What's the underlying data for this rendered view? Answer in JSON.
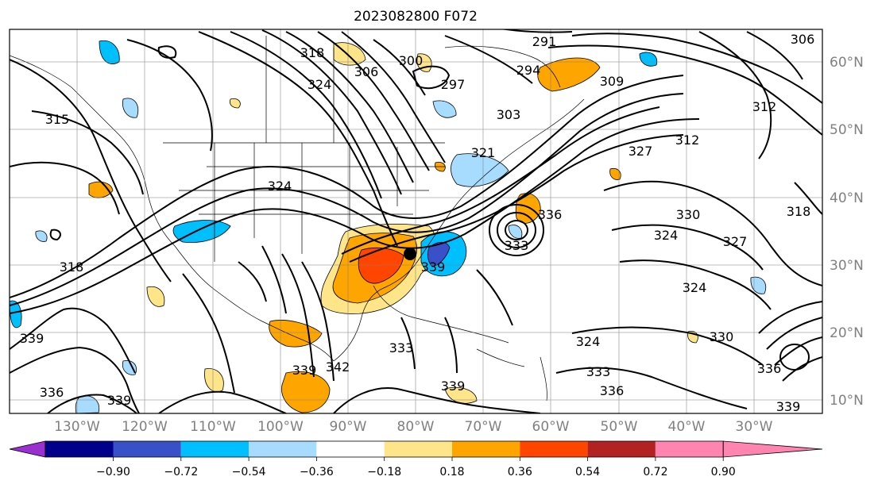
{
  "title": "2023082800 F072",
  "map": {
    "lat_labels": [
      "60°N",
      "50°N",
      "40°N",
      "30°N",
      "20°N",
      "10°N"
    ],
    "lon_labels": [
      "130°W",
      "120°W",
      "110°W",
      "100°W",
      "90°W",
      "80°W",
      "70°W",
      "60°W",
      "50°W",
      "40°W",
      "30°W"
    ],
    "contour_labels": [
      "291",
      "306",
      "312",
      "300",
      "297",
      "294",
      "309",
      "318",
      "324",
      "315",
      "306",
      "303",
      "312",
      "327",
      "321",
      "324",
      "336",
      "333",
      "330",
      "324",
      "327",
      "318",
      "324",
      "318",
      "339",
      "339",
      "336",
      "339",
      "342",
      "333",
      "324",
      "333",
      "336",
      "339",
      "339",
      "330",
      "336",
      "339"
    ],
    "storm_marker": "black dot"
  },
  "colorbar": {
    "ticks": [
      "−0.90",
      "−0.72",
      "−0.54",
      "−0.36",
      "−0.18",
      "0.18",
      "0.36",
      "0.54",
      "0.72",
      "0.90"
    ],
    "colors": [
      "#9b30d0",
      "#00008b",
      "#3a50c8",
      "#00bfff",
      "#a8dcff",
      "#ffffff",
      "#ffe58a",
      "#ffa500",
      "#ff4500",
      "#b22222",
      "#ff85b0"
    ]
  }
}
